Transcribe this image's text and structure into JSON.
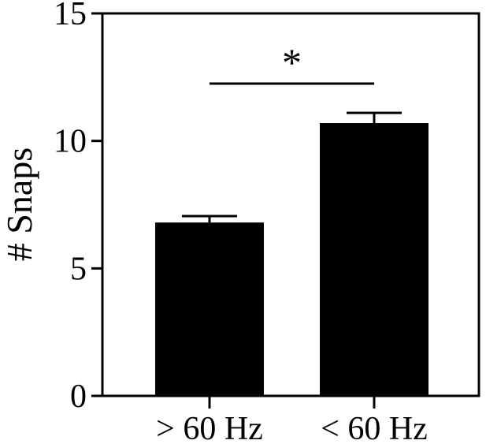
{
  "chart_data": {
    "type": "bar",
    "categories": [
      "> 60 Hz",
      "< 60 Hz"
    ],
    "values": [
      6.8,
      10.7
    ],
    "errors": [
      0.25,
      0.4
    ],
    "title": "",
    "xlabel": "",
    "ylabel": "# Snaps",
    "ylim": [
      0,
      15
    ],
    "yticks": [
      "0",
      "5",
      "10",
      "15"
    ],
    "grid": false,
    "legend": "none",
    "bar_color": "#000000",
    "significance": {
      "between": [
        0,
        1
      ],
      "label": "*"
    }
  }
}
